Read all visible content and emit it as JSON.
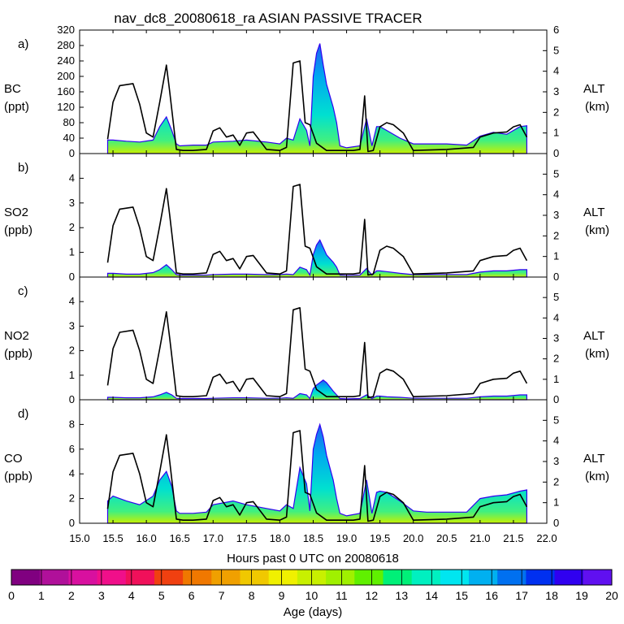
{
  "title": "nav_dc8_20080618_ra ASIAN PASSIVE TRACER",
  "xlabel": "Hours past 0 UTC on 20080618",
  "colorbar_label": "Age (days)",
  "colorbar_ticks": [
    "0",
    "1",
    "2",
    "3",
    "4",
    "5",
    "6",
    "7",
    "8",
    "9",
    "10",
    "11",
    "12",
    "13",
    "14",
    "15",
    "16",
    "17",
    "18",
    "19",
    "20"
  ],
  "colorbar_colors": [
    "#800080",
    "#b0109a",
    "#d8109f",
    "#f00f8a",
    "#f0105a",
    "#f04010",
    "#f07800",
    "#f0a000",
    "#f0c800",
    "#f0f000",
    "#c8f000",
    "#a0f000",
    "#60f000",
    "#00f078",
    "#00f0c0",
    "#00e6f0",
    "#00b0f0",
    "#0070f0",
    "#0030f0",
    "#3000f0",
    "#6010f0"
  ],
  "palette": {
    "black": "#000000",
    "trace_fill": "#20a0e0"
  },
  "chart_data": [
    {
      "type": "area",
      "panel": "a)",
      "ylabel_top": "BC",
      "ylabel_bottom": "(ppt)",
      "right_label_top": "ALT",
      "right_label_bottom": "(km)",
      "xlim": [
        15.0,
        22.0
      ],
      "ylim": [
        0,
        320
      ],
      "y_ticks": [
        "0",
        "40",
        "80",
        "120",
        "160",
        "200",
        "240",
        "280",
        "320"
      ],
      "y_tick_values": [
        0,
        40,
        80,
        120,
        160,
        200,
        240,
        280,
        320
      ],
      "alt_lim": [
        0,
        6
      ],
      "alt_ticks": [
        "0",
        "1",
        "2",
        "3",
        "4",
        "5",
        "6"
      ],
      "alt_tick_values": [
        0,
        1,
        2,
        3,
        4,
        5,
        6
      ],
      "series": [
        {
          "name": "tracer",
          "x": [
            15.42,
            15.5,
            15.7,
            15.9,
            16.1,
            16.2,
            16.3,
            16.38,
            16.45,
            16.5,
            16.7,
            16.9,
            17.0,
            17.3,
            17.5,
            17.8,
            18.0,
            18.1,
            18.2,
            18.3,
            18.4,
            18.45,
            18.5,
            18.55,
            18.6,
            18.65,
            18.7,
            18.8,
            18.85,
            18.9,
            19.0,
            19.2,
            19.3,
            19.38,
            19.45,
            19.5,
            19.6,
            19.8,
            20.0,
            20.2,
            20.5,
            20.8,
            21.0,
            21.2,
            21.4,
            21.6,
            21.7
          ],
          "y": [
            35,
            35,
            32,
            30,
            35,
            70,
            95,
            60,
            25,
            20,
            22,
            22,
            30,
            32,
            35,
            30,
            25,
            40,
            35,
            90,
            60,
            20,
            200,
            260,
            285,
            230,
            180,
            120,
            80,
            20,
            15,
            20,
            90,
            20,
            70,
            70,
            60,
            40,
            25,
            25,
            25,
            22,
            45,
            55,
            50,
            70,
            72
          ]
        },
        {
          "name": "altitude",
          "x": [
            15.42,
            15.5,
            15.6,
            15.8,
            15.9,
            16.0,
            16.1,
            16.2,
            16.3,
            16.35,
            16.45,
            16.55,
            16.7,
            16.9,
            17.0,
            17.1,
            17.2,
            17.3,
            17.4,
            17.5,
            17.6,
            17.8,
            18.0,
            18.1,
            18.2,
            18.3,
            18.38,
            18.45,
            18.55,
            18.7,
            18.9,
            19.1,
            19.2,
            19.27,
            19.32,
            19.4,
            19.5,
            19.6,
            19.7,
            19.85,
            20.0,
            20.5,
            20.9,
            21.0,
            21.2,
            21.4,
            21.5,
            21.6,
            21.7
          ],
          "y": [
            0.7,
            2.5,
            3.3,
            3.4,
            2.4,
            1.0,
            0.8,
            2.5,
            4.3,
            3.0,
            0.2,
            0.15,
            0.15,
            0.2,
            1.1,
            1.25,
            0.8,
            0.9,
            0.4,
            1.0,
            1.05,
            0.2,
            0.15,
            0.3,
            4.4,
            4.5,
            1.5,
            1.4,
            0.5,
            0.15,
            0.15,
            0.15,
            0.2,
            2.8,
            0.1,
            0.15,
            1.3,
            1.5,
            1.4,
            1.0,
            0.15,
            0.2,
            0.3,
            0.8,
            1.0,
            1.05,
            1.3,
            1.4,
            0.8
          ]
        }
      ]
    },
    {
      "type": "area",
      "panel": "b)",
      "ylabel_top": "SO2",
      "ylabel_bottom": "(ppb)",
      "right_label_top": "ALT",
      "right_label_bottom": "(km)",
      "xlim": [
        15.0,
        22.0
      ],
      "ylim": [
        0,
        5
      ],
      "y_ticks": [
        "0",
        "1",
        "2",
        "3",
        "4"
      ],
      "y_tick_values": [
        0,
        1,
        2,
        3,
        4
      ],
      "alt_lim": [
        0,
        6
      ],
      "alt_ticks": [
        "0",
        "1",
        "2",
        "3",
        "4",
        "5"
      ],
      "alt_tick_values": [
        0,
        1,
        2,
        3,
        4,
        5
      ],
      "series": [
        {
          "name": "tracer",
          "x": [
            15.42,
            15.5,
            15.7,
            15.9,
            16.1,
            16.2,
            16.3,
            16.38,
            16.45,
            16.5,
            16.7,
            16.9,
            17.0,
            17.3,
            17.5,
            17.8,
            18.0,
            18.1,
            18.2,
            18.3,
            18.4,
            18.45,
            18.5,
            18.55,
            18.6,
            18.65,
            18.7,
            18.8,
            18.85,
            18.9,
            19.0,
            19.2,
            19.3,
            19.38,
            19.45,
            19.5,
            19.6,
            19.8,
            20.0,
            20.2,
            20.5,
            20.8,
            21.0,
            21.2,
            21.4,
            21.6,
            21.7
          ],
          "y": [
            0.15,
            0.15,
            0.12,
            0.12,
            0.18,
            0.3,
            0.5,
            0.3,
            0.1,
            0.08,
            0.08,
            0.08,
            0.1,
            0.12,
            0.12,
            0.1,
            0.1,
            0.12,
            0.1,
            0.4,
            0.3,
            0.08,
            0.9,
            1.3,
            1.5,
            1.2,
            0.9,
            0.6,
            0.4,
            0.08,
            0.06,
            0.08,
            0.35,
            0.08,
            0.25,
            0.25,
            0.22,
            0.15,
            0.1,
            0.1,
            0.1,
            0.1,
            0.2,
            0.25,
            0.25,
            0.3,
            0.3
          ]
        },
        {
          "name": "altitude",
          "x": [
            15.42,
            15.5,
            15.6,
            15.8,
            15.9,
            16.0,
            16.1,
            16.2,
            16.3,
            16.35,
            16.45,
            16.55,
            16.7,
            16.9,
            17.0,
            17.1,
            17.2,
            17.3,
            17.4,
            17.5,
            17.6,
            17.8,
            18.0,
            18.1,
            18.2,
            18.3,
            18.38,
            18.45,
            18.55,
            18.7,
            18.9,
            19.1,
            19.2,
            19.27,
            19.32,
            19.4,
            19.5,
            19.6,
            19.7,
            19.85,
            20.0,
            20.5,
            20.9,
            21.0,
            21.2,
            21.4,
            21.5,
            21.6,
            21.7
          ],
          "y": [
            0.7,
            2.5,
            3.3,
            3.4,
            2.4,
            1.0,
            0.8,
            2.5,
            4.3,
            3.0,
            0.2,
            0.15,
            0.15,
            0.2,
            1.1,
            1.25,
            0.8,
            0.9,
            0.4,
            1.0,
            1.05,
            0.2,
            0.15,
            0.3,
            4.4,
            4.5,
            1.5,
            1.4,
            0.5,
            0.15,
            0.15,
            0.15,
            0.2,
            2.8,
            0.1,
            0.15,
            1.3,
            1.5,
            1.4,
            1.0,
            0.15,
            0.2,
            0.3,
            0.8,
            1.0,
            1.05,
            1.3,
            1.4,
            0.8
          ]
        }
      ]
    },
    {
      "type": "area",
      "panel": "c)",
      "ylabel_top": "NO2",
      "ylabel_bottom": "(ppb)",
      "right_label_top": "ALT",
      "right_label_bottom": "(km)",
      "xlim": [
        15.0,
        22.0
      ],
      "ylim": [
        0,
        5
      ],
      "y_ticks": [
        "0",
        "1",
        "2",
        "3",
        "4"
      ],
      "y_tick_values": [
        0,
        1,
        2,
        3,
        4
      ],
      "alt_lim": [
        0,
        6
      ],
      "alt_ticks": [
        "0",
        "1",
        "2",
        "3",
        "4",
        "5"
      ],
      "alt_tick_values": [
        0,
        1,
        2,
        3,
        4,
        5
      ],
      "series": [
        {
          "name": "tracer",
          "x": [
            15.42,
            15.5,
            15.7,
            15.9,
            16.1,
            16.2,
            16.3,
            16.38,
            16.45,
            16.5,
            16.7,
            16.9,
            17.0,
            17.3,
            17.5,
            17.8,
            18.0,
            18.1,
            18.2,
            18.3,
            18.4,
            18.45,
            18.5,
            18.55,
            18.6,
            18.65,
            18.7,
            18.8,
            18.85,
            18.9,
            19.0,
            19.2,
            19.3,
            19.38,
            19.45,
            19.5,
            19.6,
            19.8,
            20.0,
            20.2,
            20.5,
            20.8,
            21.0,
            21.2,
            21.4,
            21.6,
            21.7
          ],
          "y": [
            0.1,
            0.1,
            0.08,
            0.08,
            0.12,
            0.2,
            0.3,
            0.2,
            0.06,
            0.05,
            0.05,
            0.05,
            0.06,
            0.08,
            0.08,
            0.06,
            0.06,
            0.08,
            0.06,
            0.25,
            0.2,
            0.05,
            0.45,
            0.6,
            0.7,
            0.8,
            0.7,
            0.35,
            0.2,
            0.05,
            0.04,
            0.05,
            0.2,
            0.05,
            0.15,
            0.15,
            0.12,
            0.1,
            0.06,
            0.06,
            0.06,
            0.06,
            0.12,
            0.15,
            0.15,
            0.2,
            0.2
          ]
        },
        {
          "name": "altitude",
          "x": [
            15.42,
            15.5,
            15.6,
            15.8,
            15.9,
            16.0,
            16.1,
            16.2,
            16.3,
            16.35,
            16.45,
            16.55,
            16.7,
            16.9,
            17.0,
            17.1,
            17.2,
            17.3,
            17.4,
            17.5,
            17.6,
            17.8,
            18.0,
            18.1,
            18.2,
            18.3,
            18.38,
            18.45,
            18.55,
            18.7,
            18.9,
            19.1,
            19.2,
            19.27,
            19.32,
            19.4,
            19.5,
            19.6,
            19.7,
            19.85,
            20.0,
            20.5,
            20.9,
            21.0,
            21.2,
            21.4,
            21.5,
            21.6,
            21.7
          ],
          "y": [
            0.7,
            2.5,
            3.3,
            3.4,
            2.4,
            1.0,
            0.8,
            2.5,
            4.3,
            3.0,
            0.2,
            0.15,
            0.15,
            0.2,
            1.1,
            1.25,
            0.8,
            0.9,
            0.4,
            1.0,
            1.05,
            0.2,
            0.15,
            0.3,
            4.4,
            4.5,
            1.5,
            1.4,
            0.5,
            0.15,
            0.15,
            0.15,
            0.2,
            2.8,
            0.1,
            0.15,
            1.3,
            1.5,
            1.4,
            1.0,
            0.15,
            0.2,
            0.3,
            0.8,
            1.0,
            1.05,
            1.3,
            1.4,
            0.8
          ]
        }
      ]
    },
    {
      "type": "area",
      "panel": "d)",
      "ylabel_top": "CO",
      "ylabel_bottom": "(ppb)",
      "right_label_top": "ALT",
      "right_label_bottom": "(km)",
      "xlim": [
        15.0,
        22.0
      ],
      "ylim": [
        0,
        10
      ],
      "y_ticks": [
        "0",
        "2",
        "4",
        "6",
        "8"
      ],
      "y_tick_values": [
        0,
        2,
        4,
        6,
        8
      ],
      "alt_lim": [
        0,
        6
      ],
      "alt_ticks": [
        "0",
        "1",
        "2",
        "3",
        "4",
        "5"
      ],
      "alt_tick_values": [
        0,
        1,
        2,
        3,
        4,
        5
      ],
      "x_ticks": [
        "15.0",
        "15.5",
        "16.0",
        "16.5",
        "17.0",
        "17.5",
        "18.0",
        "18.5",
        "19.0",
        "19.5",
        "20.0",
        "20.5",
        "21.0",
        "21.5",
        "22.0"
      ],
      "x_tick_values": [
        15.0,
        15.5,
        16.0,
        16.5,
        17.0,
        17.5,
        18.0,
        18.5,
        19.0,
        19.5,
        20.0,
        20.5,
        21.0,
        21.5,
        22.0
      ],
      "series": [
        {
          "name": "tracer",
          "x": [
            15.42,
            15.5,
            15.7,
            15.9,
            16.1,
            16.2,
            16.3,
            16.38,
            16.45,
            16.5,
            16.7,
            16.9,
            17.0,
            17.3,
            17.5,
            17.8,
            18.0,
            18.1,
            18.2,
            18.3,
            18.4,
            18.45,
            18.5,
            18.55,
            18.6,
            18.65,
            18.7,
            18.8,
            18.85,
            18.9,
            19.0,
            19.2,
            19.3,
            19.38,
            19.45,
            19.5,
            19.6,
            19.8,
            20.0,
            20.2,
            20.5,
            20.8,
            21.0,
            21.2,
            21.4,
            21.6,
            21.7
          ],
          "y": [
            1.8,
            2.2,
            1.8,
            1.5,
            2.2,
            3.5,
            4.2,
            3.0,
            1.0,
            0.8,
            0.8,
            0.9,
            1.5,
            1.8,
            1.5,
            1.2,
            1.0,
            1.5,
            1.2,
            4.5,
            3.2,
            1.0,
            6.0,
            7.2,
            8.0,
            7.0,
            5.5,
            3.5,
            2.0,
            0.8,
            0.6,
            0.8,
            3.5,
            0.8,
            2.5,
            2.6,
            2.5,
            1.8,
            1.0,
            0.9,
            0.9,
            0.9,
            2.0,
            2.2,
            2.3,
            2.6,
            2.7
          ]
        },
        {
          "name": "altitude",
          "x": [
            15.42,
            15.5,
            15.6,
            15.8,
            15.9,
            16.0,
            16.1,
            16.2,
            16.3,
            16.35,
            16.45,
            16.55,
            16.7,
            16.9,
            17.0,
            17.1,
            17.2,
            17.3,
            17.4,
            17.5,
            17.6,
            17.8,
            18.0,
            18.1,
            18.2,
            18.3,
            18.38,
            18.45,
            18.55,
            18.7,
            18.9,
            19.1,
            19.2,
            19.27,
            19.32,
            19.4,
            19.5,
            19.6,
            19.7,
            19.85,
            20.0,
            20.5,
            20.9,
            21.0,
            21.2,
            21.4,
            21.5,
            21.6,
            21.7
          ],
          "y": [
            0.7,
            2.5,
            3.3,
            3.4,
            2.4,
            1.0,
            0.8,
            2.5,
            4.3,
            3.0,
            0.2,
            0.15,
            0.15,
            0.2,
            1.1,
            1.25,
            0.8,
            0.9,
            0.4,
            1.0,
            1.05,
            0.2,
            0.15,
            0.3,
            4.4,
            4.5,
            1.5,
            1.4,
            0.5,
            0.15,
            0.15,
            0.15,
            0.2,
            2.8,
            0.1,
            0.15,
            1.3,
            1.5,
            1.4,
            1.0,
            0.15,
            0.2,
            0.3,
            0.8,
            1.0,
            1.05,
            1.3,
            1.4,
            0.8
          ]
        }
      ]
    }
  ]
}
